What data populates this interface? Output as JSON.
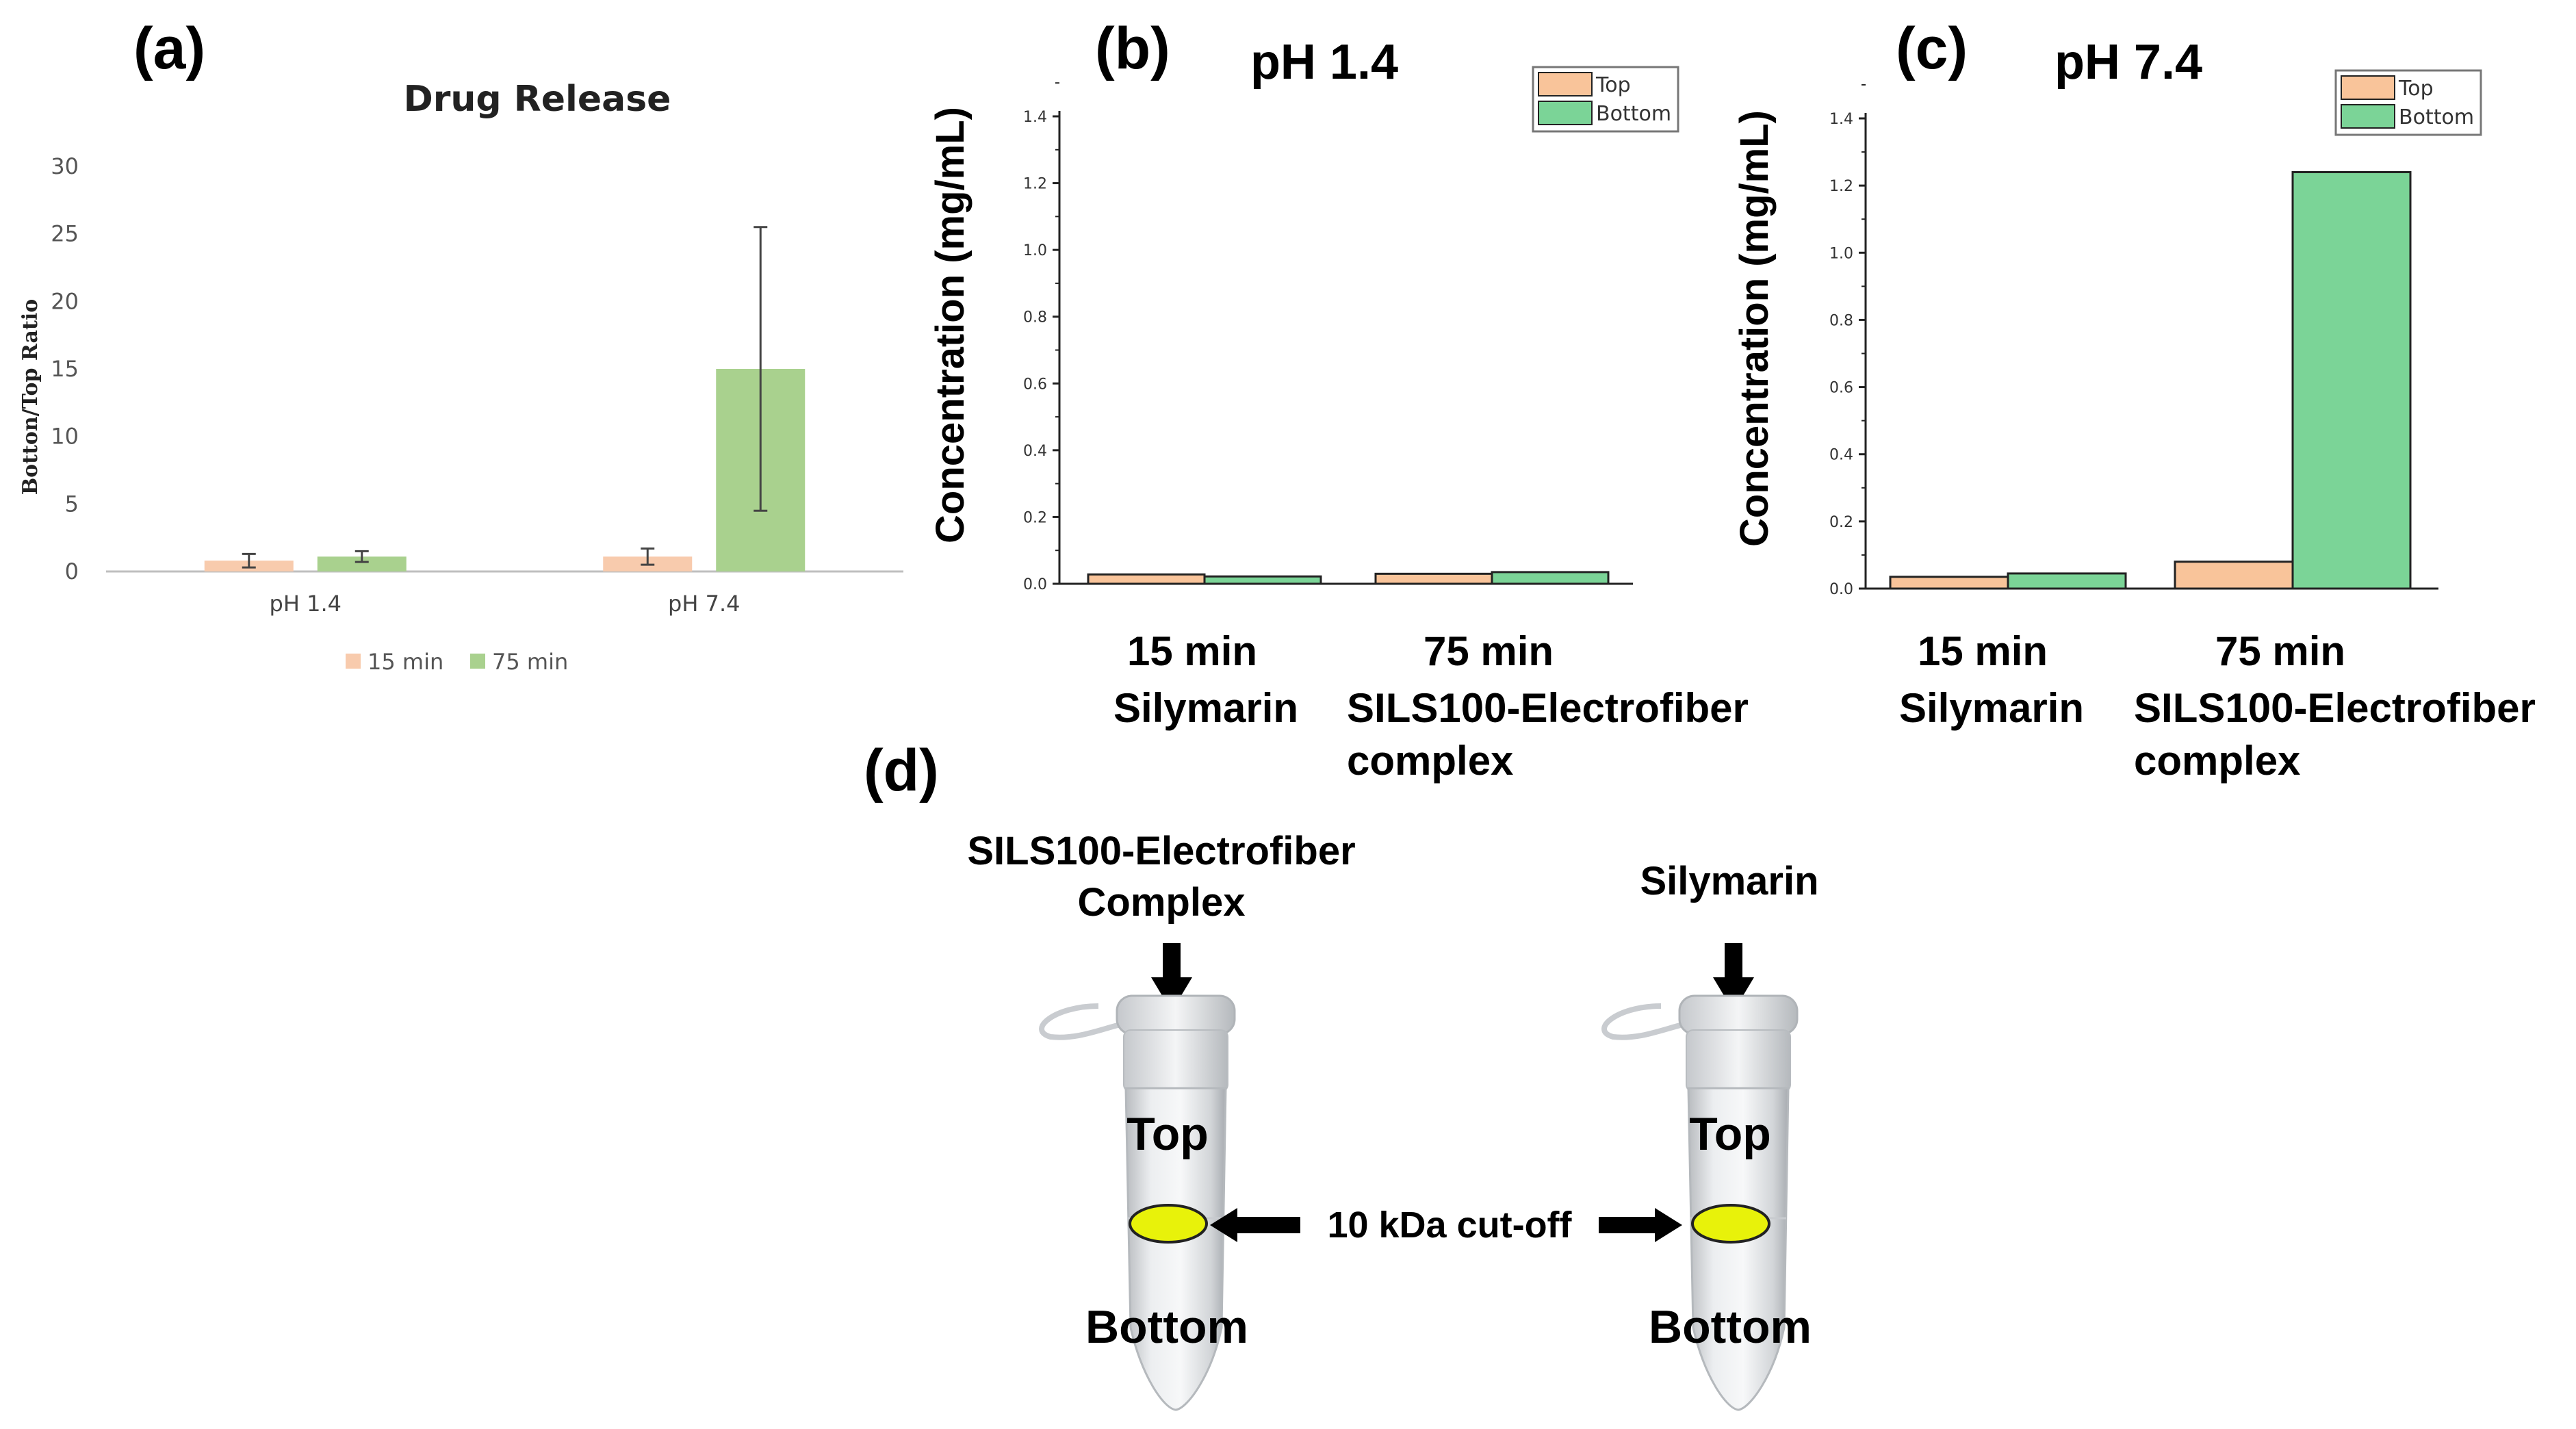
{
  "panels": {
    "a": "(a)",
    "b": "(b)",
    "c": "(c)",
    "d": "(d)"
  },
  "chart_data": [
    {
      "id": "a",
      "type": "bar",
      "title": "Drug Release",
      "xlabel": "",
      "ylabel": "Botton/Top Ratio",
      "ylim": [
        0,
        30
      ],
      "yticks": [
        "0",
        "5",
        "10",
        "15",
        "20",
        "25",
        "30"
      ],
      "categories": [
        "pH 1.4",
        "pH 7.4"
      ],
      "series": [
        {
          "name": "15 min",
          "color": "#F8CBAD",
          "values": [
            0.8,
            1.1
          ],
          "errors": [
            0.5,
            0.6
          ]
        },
        {
          "name": "75 min",
          "color": "#A9D18E",
          "values": [
            1.1,
            15.0
          ],
          "errors": [
            0.4,
            10.5
          ]
        }
      ],
      "legend": "bottom",
      "grid": false
    },
    {
      "id": "b",
      "type": "bar",
      "title": "pH 1.4",
      "ylabel": "Concentration (mg/mL)",
      "ylim": [
        0,
        1.4
      ],
      "yticks": [
        "0.0",
        "0.2",
        "0.4",
        "0.6",
        "0.8",
        "1.0",
        "1.2",
        "1.4"
      ],
      "categories": [
        {
          "time": "15 min",
          "name": [
            "Silymarin"
          ]
        },
        {
          "time": "75 min",
          "name": [
            "SILS100-Electrofiber",
            "complex"
          ]
        }
      ],
      "series": [
        {
          "name": "Top",
          "color": "#F9C49A",
          "values": [
            0.028,
            0.03
          ]
        },
        {
          "name": "Bottom",
          "color": "#7BD497",
          "values": [
            0.022,
            0.035
          ]
        }
      ],
      "legend": "top-right",
      "grid": false
    },
    {
      "id": "c",
      "type": "bar",
      "title": "pH 7.4",
      "ylabel": "Concentration (mg/mL)",
      "ylim": [
        0,
        1.4
      ],
      "yticks": [
        "0.0",
        "0.2",
        "0.4",
        "0.6",
        "0.8",
        "1.0",
        "1.2",
        "1.4"
      ],
      "categories": [
        {
          "time": "15 min",
          "name": [
            "Silymarin"
          ]
        },
        {
          "time": "75 min",
          "name": [
            "SILS100-Electrofiber",
            "complex"
          ]
        }
      ],
      "series": [
        {
          "name": "Top",
          "color": "#F9C49A",
          "values": [
            0.035,
            0.08
          ]
        },
        {
          "name": "Bottom",
          "color": "#7BD497",
          "values": [
            0.045,
            1.24
          ]
        }
      ],
      "legend": "top-right",
      "grid": false
    }
  ],
  "diagram": {
    "left_tube_title": [
      "SILS100-Electrofiber",
      "Complex"
    ],
    "right_tube_title": "Silymarin",
    "top_label": "Top",
    "bottom_label": "Bottom",
    "cutoff_label": "10 kDa cut-off",
    "membrane_color": "#E8F20A"
  }
}
